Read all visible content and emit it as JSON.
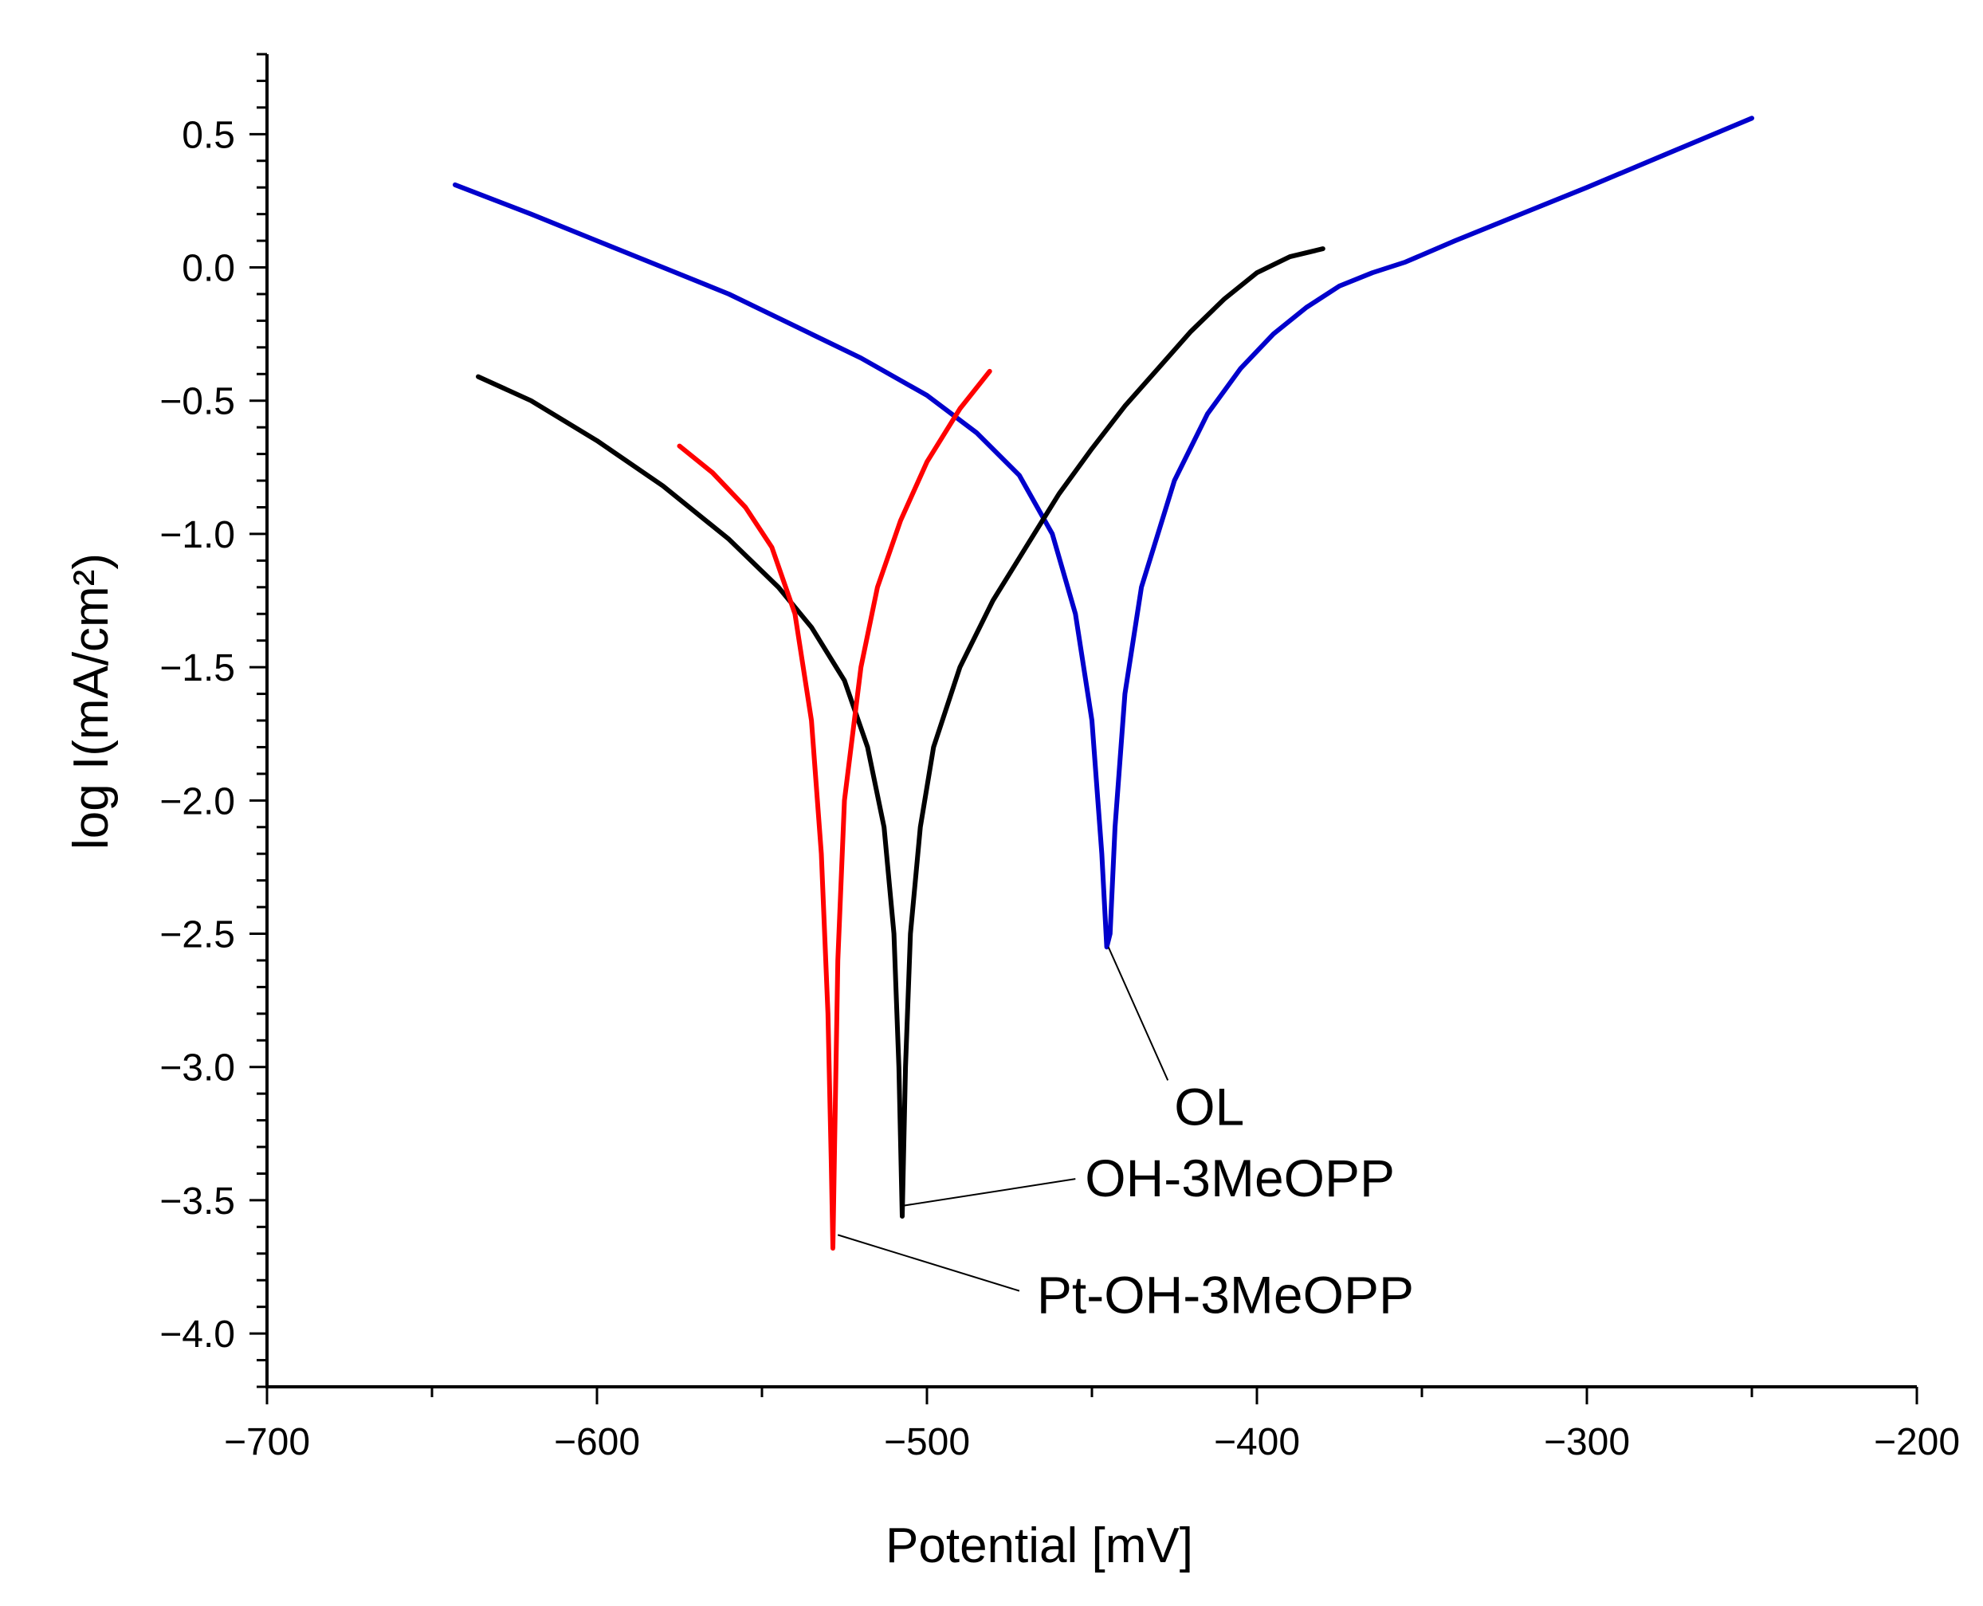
{
  "chart_data": {
    "type": "line",
    "title": "",
    "xlabel": "Potential [mV]",
    "ylabel": "log I(mA/cm²)",
    "xlim": [
      -700,
      -200
    ],
    "ylim": [
      -4.2,
      0.8
    ],
    "xticks": [
      -700,
      -600,
      -500,
      -400,
      -300,
      -200
    ],
    "xtick_labels": [
      "−700",
      "−600",
      "−500",
      "−400",
      "−300",
      "−200"
    ],
    "yticks": [
      0.5,
      0.0,
      -0.5,
      -1.0,
      -1.5,
      -2.0,
      -2.5,
      -3.0,
      -3.5,
      -4.0
    ],
    "ytick_labels": [
      "0.5",
      "0.0",
      "−0.5",
      "−1.0",
      "−1.5",
      "−2.0",
      "−2.5",
      "−3.0",
      "−3.5",
      "−4.0"
    ],
    "grid": false,
    "series": [
      {
        "name": "OL",
        "color": "#0000cc",
        "x": [
          -643,
          -620,
          -600,
          -580,
          -560,
          -540,
          -520,
          -500,
          -485,
          -472,
          -462,
          -455,
          -450,
          -447,
          -445.5,
          -444.5,
          -443,
          -440,
          -435,
          -425,
          -415,
          -405,
          -395,
          -385,
          -375,
          -365,
          -355,
          -340,
          -320,
          -300,
          -275,
          -250
        ],
        "y": [
          0.31,
          0.2,
          0.1,
          0.0,
          -0.1,
          -0.22,
          -0.34,
          -0.48,
          -0.62,
          -0.78,
          -1.0,
          -1.3,
          -1.7,
          -2.2,
          -2.55,
          -2.5,
          -2.1,
          -1.6,
          -1.2,
          -0.8,
          -0.55,
          -0.38,
          -0.25,
          -0.15,
          -0.07,
          -0.02,
          0.02,
          0.1,
          0.2,
          0.3,
          0.43,
          0.56
        ]
      },
      {
        "name": "OH-3MeOPP",
        "color": "#000000",
        "x": [
          -636,
          -620,
          -600,
          -580,
          -560,
          -545,
          -535,
          -525,
          -518,
          -513,
          -510,
          -508.5,
          -507.5,
          -506.5,
          -505,
          -502,
          -498,
          -490,
          -480,
          -470,
          -460,
          -450,
          -440,
          -430,
          -420,
          -410,
          -400,
          -390,
          -380
        ],
        "y": [
          -0.41,
          -0.5,
          -0.65,
          -0.82,
          -1.02,
          -1.2,
          -1.35,
          -1.55,
          -1.8,
          -2.1,
          -2.5,
          -3.0,
          -3.56,
          -3.0,
          -2.5,
          -2.1,
          -1.8,
          -1.5,
          -1.25,
          -1.05,
          -0.85,
          -0.68,
          -0.52,
          -0.38,
          -0.24,
          -0.12,
          -0.02,
          0.04,
          0.07
        ]
      },
      {
        "name": "Pt-OH-3MeOPP",
        "color": "#ff0000",
        "x": [
          -575,
          -565,
          -555,
          -547,
          -540,
          -535,
          -532,
          -530,
          -529,
          -528.5,
          -528,
          -527,
          -525,
          -520,
          -515,
          -508,
          -500,
          -490,
          -481
        ],
        "y": [
          -0.67,
          -0.77,
          -0.9,
          -1.05,
          -1.3,
          -1.7,
          -2.2,
          -2.8,
          -3.35,
          -3.68,
          -3.3,
          -2.6,
          -2.0,
          -1.5,
          -1.2,
          -0.95,
          -0.73,
          -0.53,
          -0.39
        ]
      }
    ],
    "annotations": [
      {
        "text": "OL",
        "series": "OL",
        "point": [
          -445,
          -2.55
        ],
        "text_anchor_at": [
          -427,
          -3.05
        ]
      },
      {
        "text": "OH-3MeOPP",
        "series": "OH-3MeOPP",
        "point": [
          -507,
          -3.52
        ],
        "text_anchor_at": [
          -455,
          -3.42
        ]
      },
      {
        "text": "Pt-OH-3MeOPP",
        "series": "Pt-OH-3MeOPP",
        "point": [
          -527,
          -3.63
        ],
        "text_anchor_at": [
          -472,
          -3.84
        ]
      }
    ]
  }
}
